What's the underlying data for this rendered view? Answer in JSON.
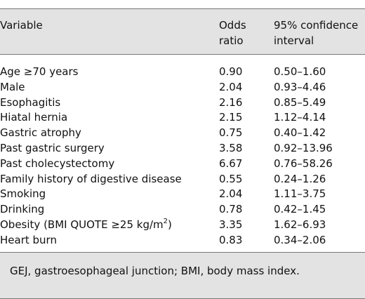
{
  "table": {
    "headers": {
      "variable": "Variable",
      "odds_line1": "Odds",
      "odds_line2": "ratio",
      "ci_line1": "95% confidence",
      "ci_line2": "interval"
    },
    "rows": [
      {
        "variable": "Age ≥70 years",
        "odds": "0.90",
        "ci": "0.50–1.60"
      },
      {
        "variable": "Male",
        "odds": "2.04",
        "ci": "0.93–4.46"
      },
      {
        "variable": "Esophagitis",
        "odds": "2.16",
        "ci": "0.85–5.49"
      },
      {
        "variable": "Hiatal hernia",
        "odds": "2.15",
        "ci": "1.12–4.14"
      },
      {
        "variable": "Gastric atrophy",
        "odds": "0.75",
        "ci": "0.40–1.42"
      },
      {
        "variable": "Past gastric surgery",
        "odds": "3.58",
        "ci": "0.92–13.96"
      },
      {
        "variable": "Past cholecystectomy",
        "odds": "6.67",
        "ci": "0.76–58.26"
      },
      {
        "variable": "Family history of digestive disease",
        "odds": "0.55",
        "ci": "0.24–1.26"
      },
      {
        "variable": "Smoking",
        "odds": "2.04",
        "ci": "1.11–3.75"
      },
      {
        "variable": "Drinking",
        "odds": "0.78",
        "ci": "0.42–1.45"
      },
      {
        "variable_main": "Obesity (BMI QUOTE ≥25 kg/m",
        "variable_sup": "2",
        "variable_tail": ")",
        "odds": "3.35",
        "ci": "1.62–6.93"
      },
      {
        "variable": "Heart burn",
        "odds": "0.83",
        "ci": "0.34–2.06"
      }
    ]
  },
  "footnote": "GEJ, gastroesophageal junction; BMI, body mass index."
}
